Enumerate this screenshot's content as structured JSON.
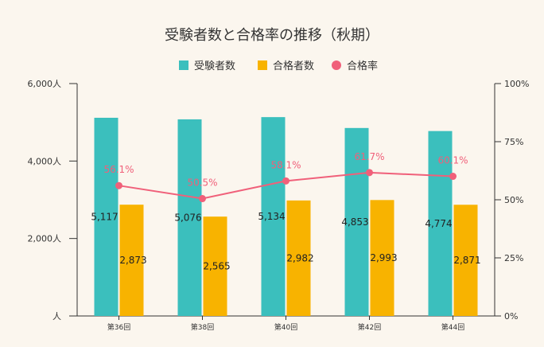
{
  "chart_data": {
    "type": "bar",
    "title": "受験者数と合格率の推移（秋期）",
    "categories": [
      "第36回",
      "第38回",
      "第40回",
      "第42回",
      "第44回"
    ],
    "series": [
      {
        "name": "受験者数",
        "type": "bar",
        "axis": "left",
        "color": "#3bbfbd",
        "values": [
          5117,
          5076,
          5134,
          4853,
          4774
        ],
        "labels": [
          "5,117",
          "5,076",
          "5,134",
          "4,853",
          "4,774"
        ]
      },
      {
        "name": "合格者数",
        "type": "bar",
        "axis": "left",
        "color": "#f8b300",
        "values": [
          2873,
          2565,
          2982,
          2993,
          2871
        ],
        "labels": [
          "2,873",
          "2,565",
          "2,982",
          "2,993",
          "2,871"
        ]
      },
      {
        "name": "合格率",
        "type": "line",
        "axis": "right",
        "color": "#f0607a",
        "values": [
          56.1,
          50.5,
          58.1,
          61.7,
          60.1
        ],
        "labels": [
          "56.1%",
          "50.5%",
          "58.1%",
          "61.7%",
          "60.1%"
        ]
      }
    ],
    "y_left": {
      "range": [
        0,
        6000
      ],
      "ticks": [
        0,
        2000,
        4000,
        6000
      ],
      "tick_labels": [
        "人",
        "2,000人",
        "4,000人",
        "6,000人"
      ]
    },
    "y_right": {
      "range": [
        0,
        100
      ],
      "ticks": [
        0,
        25,
        50,
        75,
        100
      ],
      "tick_labels": [
        "0%",
        "25%",
        "50%",
        "75%",
        "100%"
      ]
    },
    "legend_position": "top",
    "grid": false,
    "colors": {
      "background": "#fbf6ee",
      "text": "#333333",
      "rate_label": "#f0607a"
    }
  }
}
